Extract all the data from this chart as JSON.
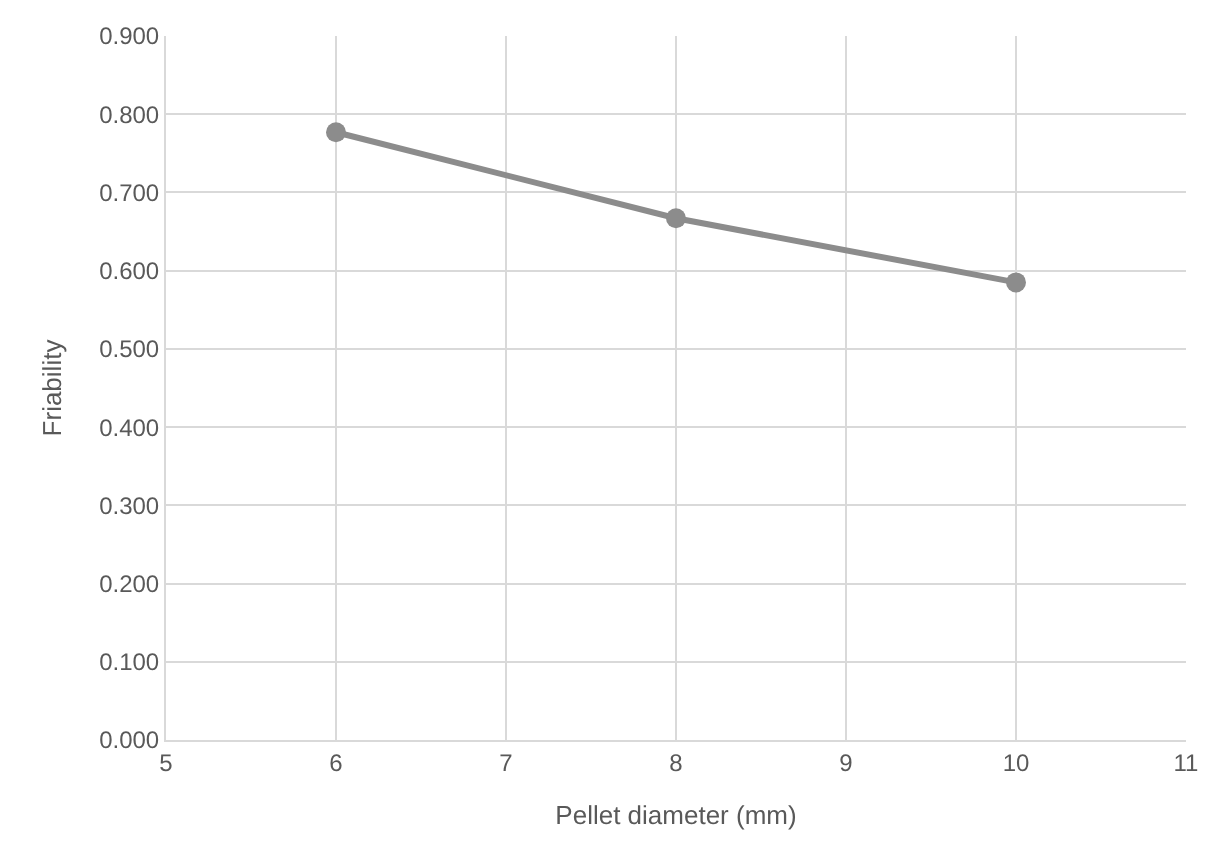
{
  "chart_data": {
    "type": "line",
    "xlabel": "Pellet diameter (mm)",
    "ylabel": "Friability",
    "x": [
      6,
      8,
      10
    ],
    "series": [
      {
        "color": "#8c8c8c",
        "values": [
          0.777,
          0.667,
          0.585
        ]
      }
    ],
    "marker": "circle",
    "line_style": "solid",
    "grid": true,
    "legend": false,
    "xlim": [
      5,
      11
    ],
    "xticks": [
      5,
      6,
      7,
      8,
      9,
      10,
      11
    ],
    "ylim": [
      0,
      0.9
    ],
    "yticks": [
      {
        "value": 0,
        "label": "0.000"
      },
      {
        "value": 0.1,
        "label": "0.100"
      },
      {
        "value": 0.2,
        "label": "0.200"
      },
      {
        "value": 0.3,
        "label": "0.300"
      },
      {
        "value": 0.4,
        "label": "0.400"
      },
      {
        "value": 0.5,
        "label": "0.500"
      },
      {
        "value": 0.6,
        "label": "0.600"
      },
      {
        "value": 0.7,
        "label": "0.700"
      },
      {
        "value": 0.8,
        "label": "0.800"
      },
      {
        "value": 0.9,
        "label": "0.900"
      }
    ]
  }
}
